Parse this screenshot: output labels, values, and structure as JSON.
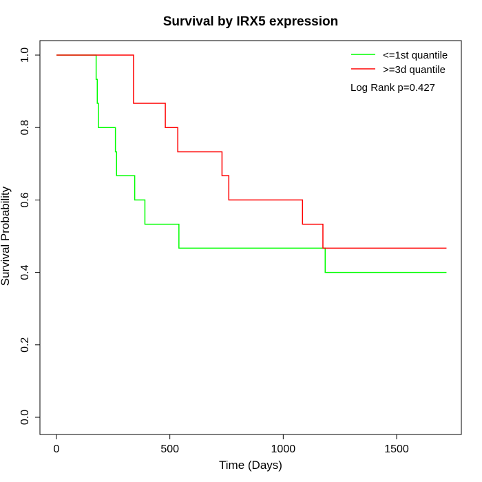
{
  "chart_data": {
    "type": "line",
    "step": true,
    "title": "Survival by IRX5 expression",
    "xlabel": "Time (Days)",
    "ylabel": "Survival Probability",
    "xlim": [
      0,
      1750
    ],
    "ylim": [
      0,
      1
    ],
    "x_ticks": [
      0,
      500,
      1000,
      1500
    ],
    "y_ticks": [
      0.0,
      0.2,
      0.4,
      0.6,
      0.8,
      1.0
    ],
    "x_tick_labels": [
      "0",
      "500",
      "1000",
      "1500"
    ],
    "y_tick_labels": [
      "0.0",
      "0.2",
      "0.4",
      "0.6",
      "0.8",
      "1.0"
    ],
    "grid": false,
    "legend_position": "top-right",
    "annotation": "Log Rank p=0.427",
    "series": [
      {
        "name": "<=1st quantile",
        "color": "#00ff00",
        "x": [
          0,
          170,
          175,
          180,
          185,
          255,
          260,
          265,
          345,
          390,
          540,
          1185,
          1720
        ],
        "y": [
          1.0,
          1.0,
          0.933,
          0.867,
          0.8,
          0.8,
          0.733,
          0.667,
          0.6,
          0.533,
          0.467,
          0.4,
          0.4
        ]
      },
      {
        "name": ">=3d quantile",
        "color": "#ff0000",
        "x": [
          0,
          330,
          340,
          480,
          535,
          730,
          760,
          1085,
          1175,
          1720
        ],
        "y": [
          1.0,
          1.0,
          0.867,
          0.8,
          0.733,
          0.667,
          0.6,
          0.533,
          0.467,
          0.467
        ]
      }
    ]
  }
}
